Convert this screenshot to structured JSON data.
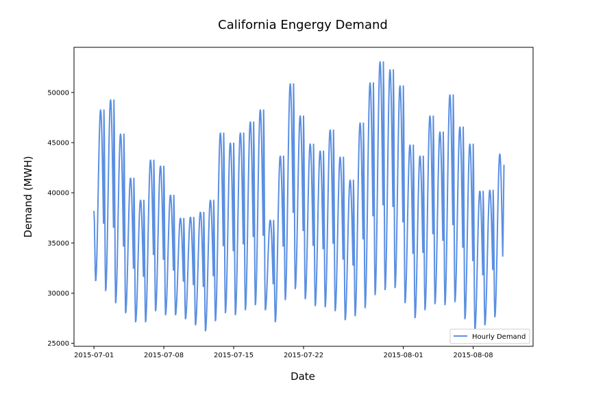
{
  "chart_data": {
    "type": "line",
    "title": "California Engergy Demand",
    "xlabel": "Date",
    "ylabel": "Demand (MWH)",
    "xlim": [
      "2015-06-29",
      "2015-08-14"
    ],
    "ylim": [
      24700,
      54500
    ],
    "x_ticks": [
      "2015-07-01",
      "2015-07-08",
      "2015-07-15",
      "2015-07-22",
      "2015-08-01",
      "2015-08-08"
    ],
    "y_ticks": [
      25000,
      30000,
      35000,
      40000,
      45000,
      50000
    ],
    "y_tick_labels": [
      "25000",
      "30000",
      "35000",
      "40000",
      "45000",
      "50000"
    ],
    "grid": false,
    "legend": {
      "placement": "lower-right"
    },
    "series": [
      {
        "name": "Hourly Demand",
        "color": "#5b8fe2",
        "daily_min": [
          31200,
          30200,
          29000,
          28000,
          27100,
          27100,
          28200,
          27800,
          27800,
          27400,
          26800,
          26200,
          27200,
          28000,
          27800,
          28300,
          28800,
          28300,
          27100,
          29300,
          30400,
          29400,
          28700,
          28600,
          28200,
          27300,
          27700,
          28500,
          29800,
          30300,
          30500,
          29000,
          27500,
          28300,
          28900,
          28800,
          29100,
          27400,
          26300,
          26800,
          27600
        ],
        "daily_max": [
          48300,
          49300,
          45900,
          41500,
          39300,
          43300,
          42700,
          39800,
          37500,
          37600,
          38100,
          39300,
          46000,
          45000,
          46000,
          47100,
          48300,
          37300,
          43700,
          50900,
          47700,
          44900,
          44200,
          46300,
          43600,
          41300,
          47000,
          51000,
          53100,
          52300,
          50700,
          44800,
          43700,
          47700,
          46100,
          49800,
          46600,
          44900,
          40200,
          40300,
          43900
        ],
        "final_value": 42800
      }
    ]
  }
}
